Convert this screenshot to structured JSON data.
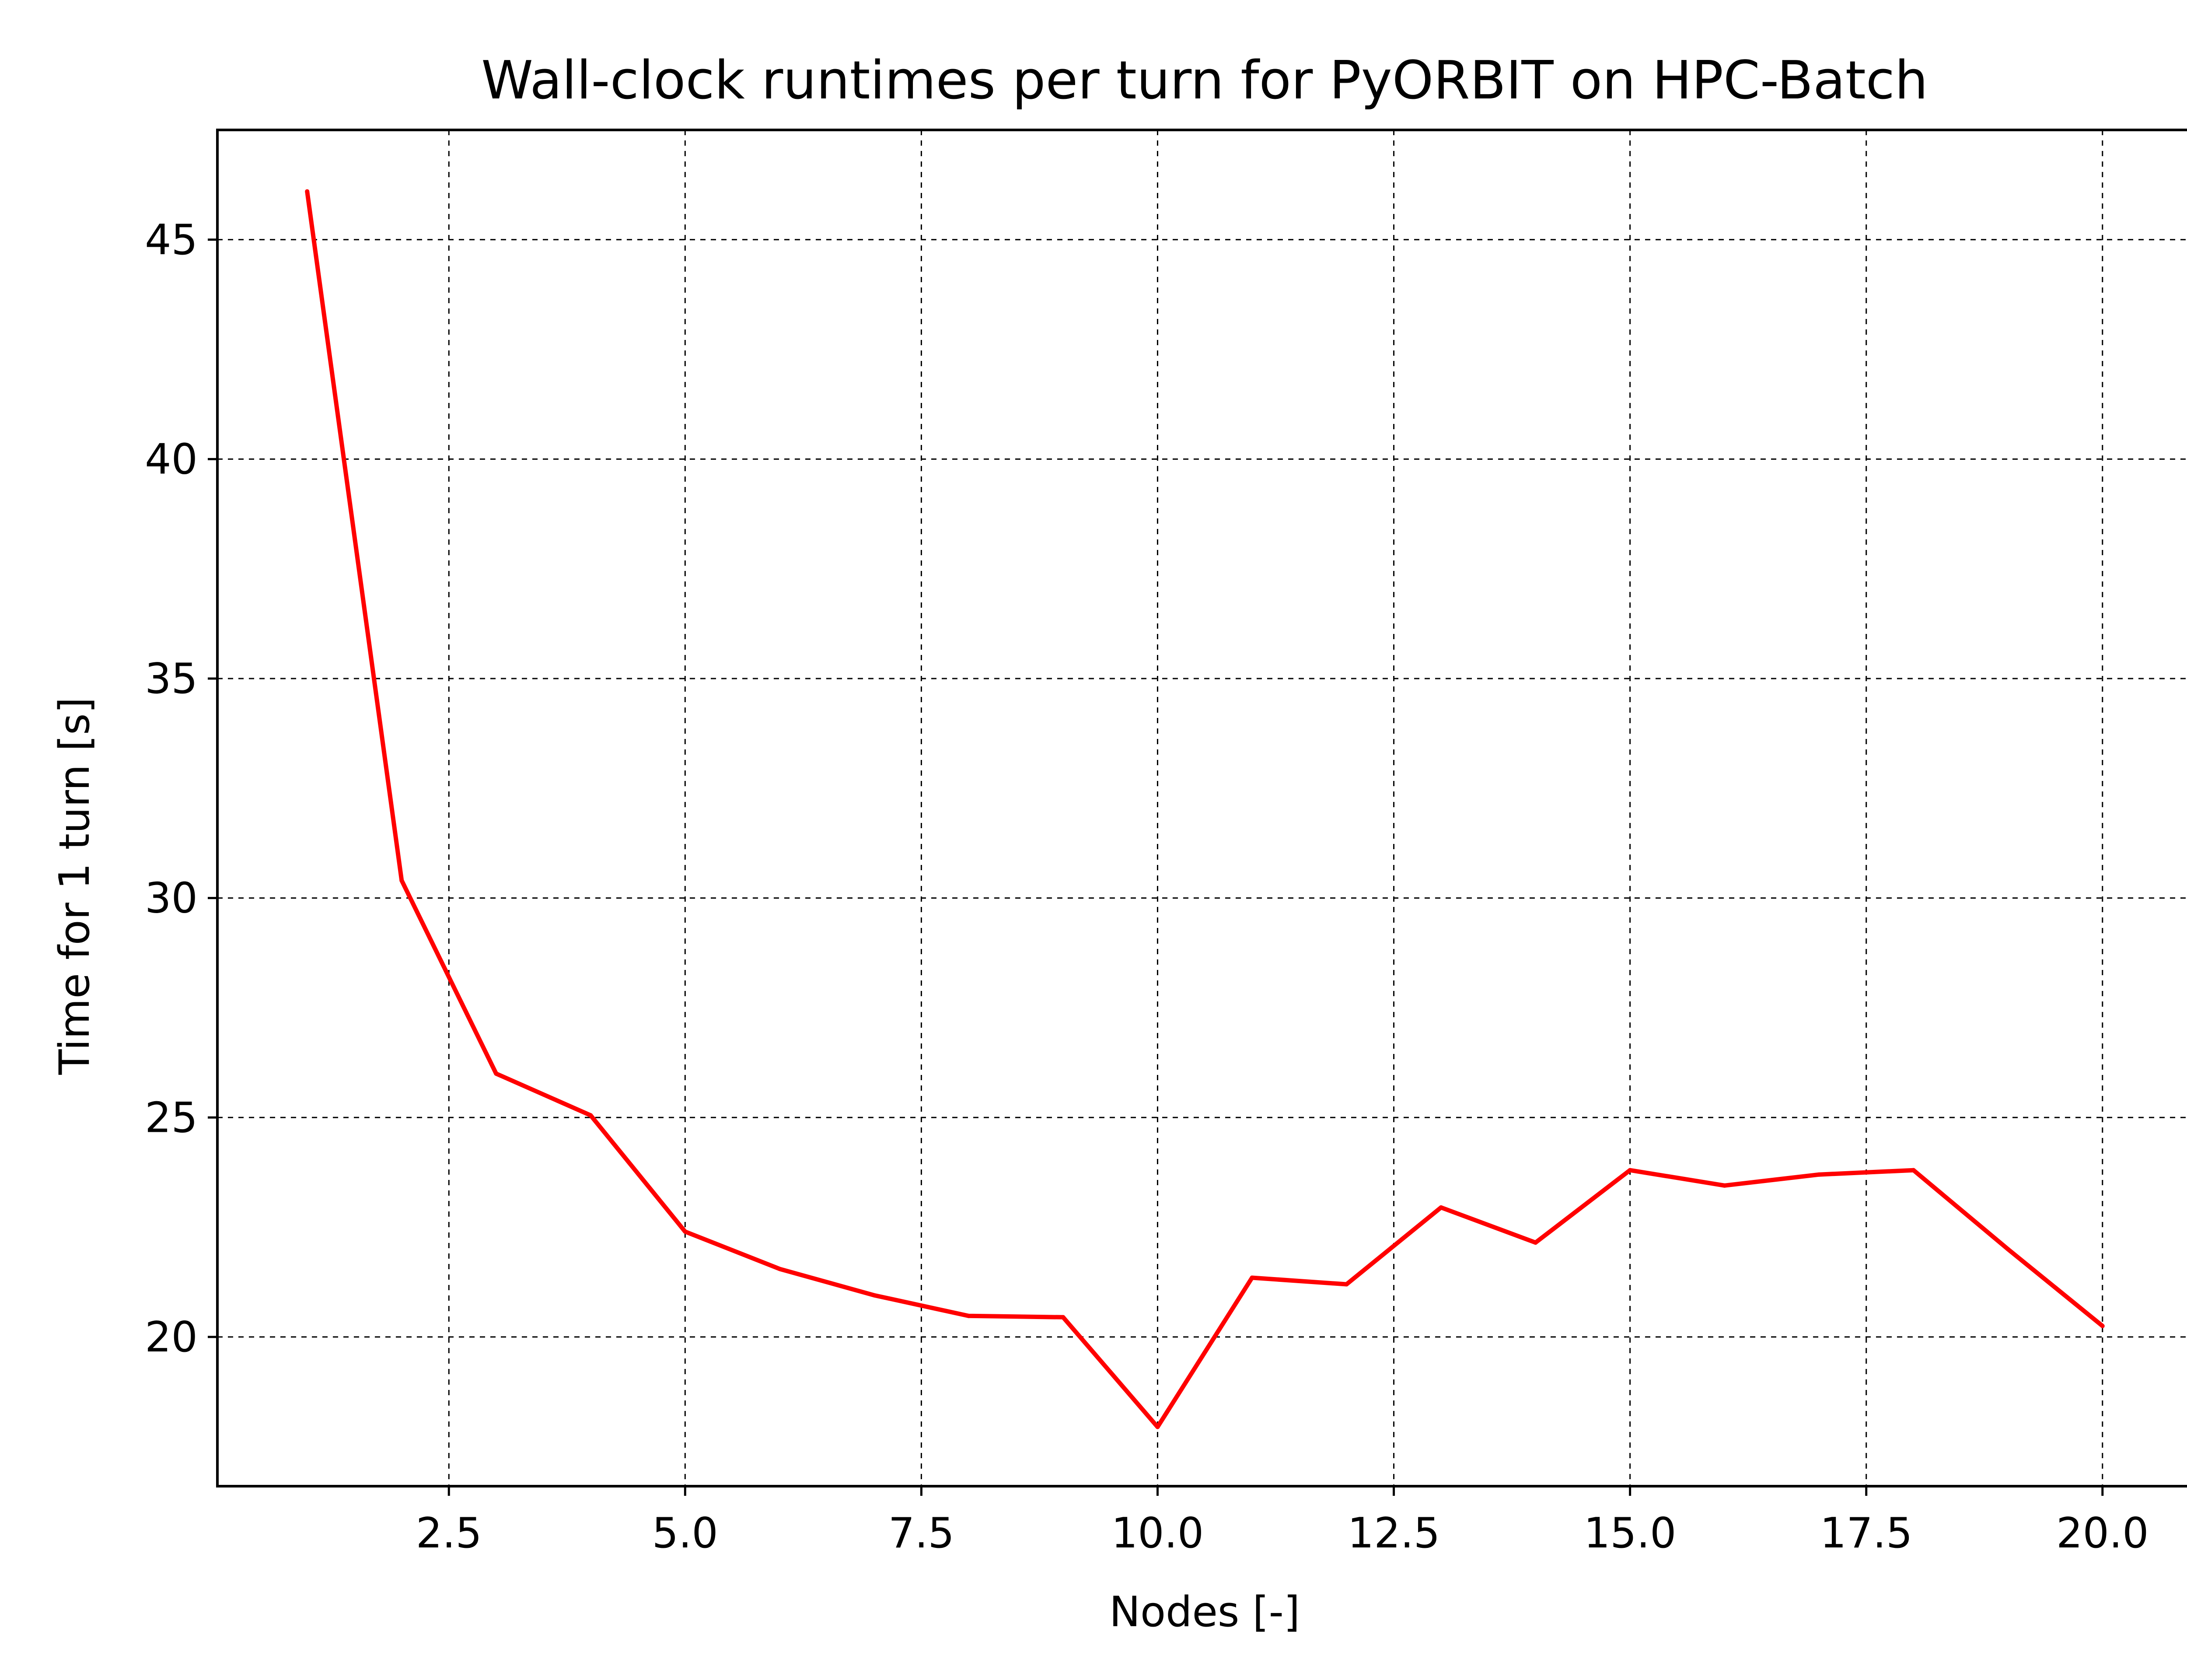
{
  "chart_data": {
    "type": "line",
    "title": "Wall-clock runtimes per turn for PyORBIT on HPC-Batch",
    "xlabel": "Nodes [-]",
    "ylabel": "Time for 1 turn [s]",
    "xlim": [
      0.05,
      20.95
    ],
    "ylim": [
      16.6,
      47.5
    ],
    "xticks": [
      2.5,
      5.0,
      7.5,
      10.0,
      12.5,
      15.0,
      17.5,
      20.0
    ],
    "xtick_labels": [
      "2.5",
      "5.0",
      "7.5",
      "10.0",
      "12.5",
      "15.0",
      "17.5",
      "20.0"
    ],
    "yticks": [
      20,
      25,
      30,
      35,
      40,
      45
    ],
    "ytick_labels": [
      "20",
      "25",
      "30",
      "35",
      "40",
      "45"
    ],
    "grid": true,
    "grid_style": "dashed",
    "series": [
      {
        "color": "#ff0000",
        "x": [
          1,
          2,
          3,
          4,
          5,
          6,
          7,
          8,
          9,
          10,
          11,
          12,
          13,
          14,
          15,
          16,
          17,
          18,
          19,
          20
        ],
        "y": [
          46.1,
          30.4,
          26.0,
          25.05,
          22.4,
          21.55,
          20.95,
          20.48,
          20.45,
          17.95,
          21.35,
          21.2,
          22.95,
          22.15,
          23.8,
          23.45,
          23.7,
          23.8,
          22.0,
          20.25
        ]
      }
    ]
  }
}
